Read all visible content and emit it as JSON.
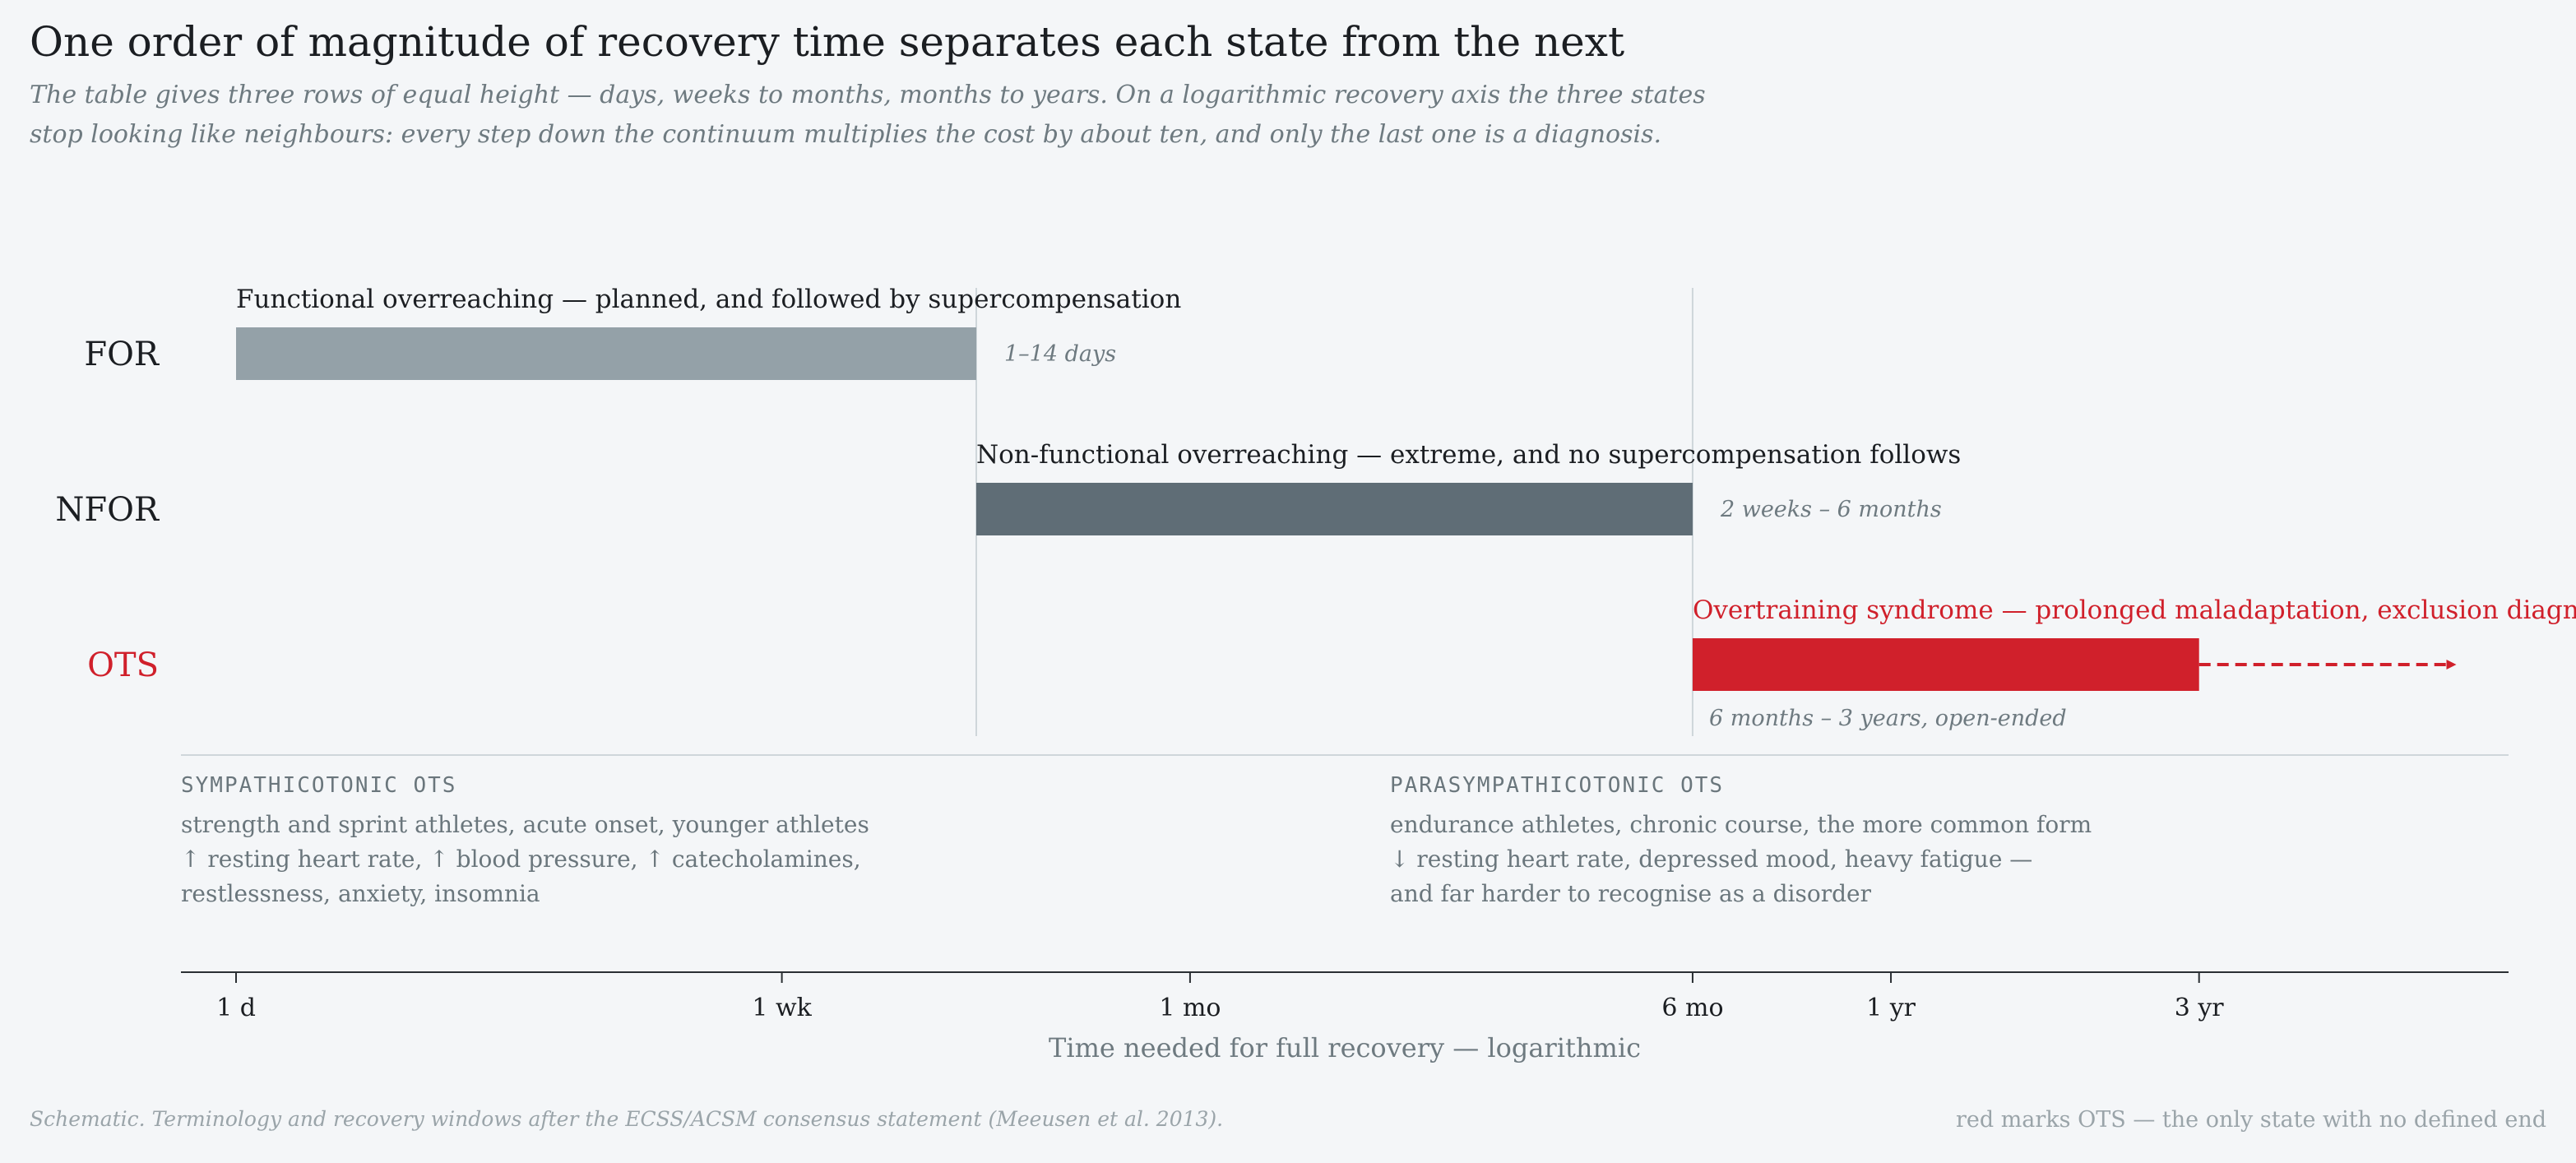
{
  "header": {
    "title": "One order of magnitude of recovery time separates each state from the next",
    "subtitle_lines": [
      "The table gives three rows of equal height — days, weeks to months, months to years. On a logarithmic recovery axis the three states",
      "stop looking like neighbours: every step down the continuum multiplies the cost by about ten, and only the last one is a diagnosis."
    ]
  },
  "chart_data": {
    "type": "bar",
    "subtype": "range-bar (horizontal, floating)",
    "x_scale": "log",
    "x_unit": "days",
    "xlabel": "Time needed for full recovery  —  logarithmic",
    "xlim": [
      0.8,
      3000
    ],
    "ticks": [
      {
        "label": "1 d",
        "value": 1
      },
      {
        "label": "1 wk",
        "value": 7
      },
      {
        "label": "1 mo",
        "value": 30
      },
      {
        "label": "6 mo",
        "value": 180
      },
      {
        "label": "1 yr",
        "value": 365
      },
      {
        "label": "3 yr",
        "value": 1095
      }
    ],
    "series": [
      {
        "name": "FOR",
        "start": 1,
        "end": 14,
        "label": "Functional overreaching — planned, and followed by supercompensation",
        "range_label": "1–14 days",
        "color": "#94a1a8",
        "open_ended": false
      },
      {
        "name": "NFOR",
        "start": 14,
        "end": 180,
        "label": "Non-functional overreaching — extreme, and no supercompensation follows",
        "range_label": "2 weeks – 6 months",
        "color": "#5f6d76",
        "open_ended": false
      },
      {
        "name": "OTS",
        "start": 180,
        "end": 1095,
        "extends_to": 2700,
        "label": "Overtraining syndrome — prolonged maladaptation, exclusion diagnosis",
        "range_label": "6 months – 3 years, open-ended",
        "color": "#d0202b",
        "open_ended": true
      }
    ],
    "reference_lines_at": [
      14,
      180
    ],
    "grid": false
  },
  "subtypes": [
    {
      "heading": "SYMPATHICOTONIC OTS",
      "lines": [
        "strength and sprint athletes, acute onset, younger athletes",
        "↑ resting heart rate, ↑ blood pressure, ↑ catecholamines,",
        "restlessness, anxiety, insomnia"
      ]
    },
    {
      "heading": "PARASYMPATHICOTONIC OTS",
      "lines": [
        "endurance athletes, chronic course, the more common form",
        "↓ resting heart rate, depressed mood, heavy fatigue —",
        "and far harder to recognise as a disorder"
      ]
    }
  ],
  "footer": {
    "source": "Schematic. Terminology and recovery windows after the ECSS/ACSM consensus statement (Meeusen et al. 2013).",
    "legend_note": "red marks OTS — the only state with no defined end"
  },
  "colors": {
    "background": "#f4f6f8",
    "accent": "#d0202b",
    "text": "#1b1e22",
    "muted": "#6e7a80",
    "rule": "#cfd6da"
  }
}
